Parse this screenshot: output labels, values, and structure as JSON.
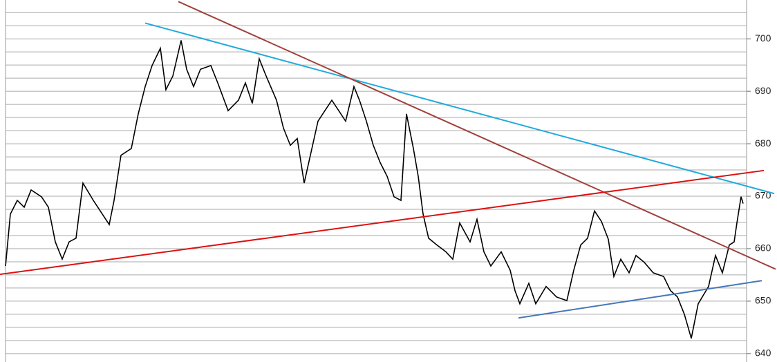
{
  "chart_data": {
    "type": "line",
    "xlim": [
      0,
      1124
    ],
    "ylim": [
      638.4,
      707.4
    ],
    "yticks": [
      640,
      650,
      660,
      670,
      680,
      690,
      700
    ],
    "minor_grid": [
      640,
      642.5,
      645,
      647.5,
      650,
      652.5,
      655,
      657.5,
      660,
      662.5,
      665,
      667.5,
      670,
      672.5,
      675,
      677.5,
      680,
      682.5,
      685,
      687.5,
      690,
      692.5,
      695,
      697.5,
      700,
      702.5,
      705
    ],
    "grid": true,
    "series": [
      {
        "color": "#000000",
        "x": [
          8,
          15,
          25,
          35,
          45,
          60,
          70,
          80,
          90,
          100,
          110,
          120,
          135,
          145,
          158,
          165,
          175,
          190,
          200,
          210,
          220,
          232,
          240,
          250,
          262,
          270,
          280,
          290,
          305,
          315,
          330,
          345,
          355,
          365,
          375,
          385,
          400,
          410,
          420,
          430,
          440,
          450,
          460,
          470,
          480,
          490,
          500,
          512,
          520,
          530,
          540,
          550,
          560,
          570,
          580,
          588,
          598,
          605,
          612,
          620,
          632,
          645,
          655,
          665,
          680,
          690,
          700,
          710,
          725,
          738,
          745,
          752,
          765,
          775,
          790,
          805,
          820,
          830,
          840,
          850,
          860,
          870,
          880,
          888,
          898,
          910,
          920,
          932,
          945,
          960,
          970,
          980,
          990,
          1000,
          1010,
          1025,
          1035,
          1045,
          1055,
          1062,
          1066,
          1072,
          1075
        ],
        "values": [
          656.7,
          666.6,
          669.2,
          667.9,
          671.2,
          669.9,
          667.9,
          661.3,
          658,
          661.3,
          662,
          672.5,
          669.2,
          667.2,
          664.6,
          669.2,
          677.8,
          679.1,
          685.7,
          690.9,
          694.9,
          698.2,
          690.3,
          692.9,
          699.7,
          694.2,
          690.9,
          694.2,
          694.9,
          691.6,
          686.3,
          688.3,
          691.6,
          687.7,
          696.2,
          692.9,
          688.3,
          683,
          679.7,
          681,
          672.5,
          678.4,
          684.3,
          686.3,
          688.3,
          686.3,
          684.3,
          690.9,
          688.3,
          684.3,
          679.7,
          676.4,
          673.8,
          669.9,
          669.2,
          685.7,
          679.1,
          673.8,
          666.6,
          662,
          660.7,
          659.4,
          658,
          664.9,
          661.3,
          665.6,
          659.4,
          656.7,
          659.4,
          655.9,
          652,
          649.5,
          653.4,
          649.5,
          652.8,
          650.8,
          650.1,
          655.9,
          660.7,
          662,
          667.2,
          665.2,
          661.8,
          654.7,
          658,
          655.4,
          658.7,
          657.4,
          655.4,
          654.7,
          652,
          650.8,
          647.5,
          642.9,
          649.5,
          652.8,
          658.7,
          655.4,
          660.7,
          661.3,
          664.9,
          669.9,
          668.6
        ]
      },
      {
        "color": "#22aadd",
        "x": [
          210,
          1120
        ],
        "values": [
          703.0,
          670.5
        ]
      },
      {
        "color": "#a0413c",
        "x": [
          258,
          1122
        ],
        "values": [
          707.1,
          656.1
        ]
      },
      {
        "color": "#dd1111",
        "x": [
          0,
          1105
        ],
        "values": [
          655.1,
          674.9
        ]
      },
      {
        "color": "#4477bb",
        "x": [
          750,
          1102
        ],
        "values": [
          646.8,
          653.9
        ]
      }
    ]
  }
}
